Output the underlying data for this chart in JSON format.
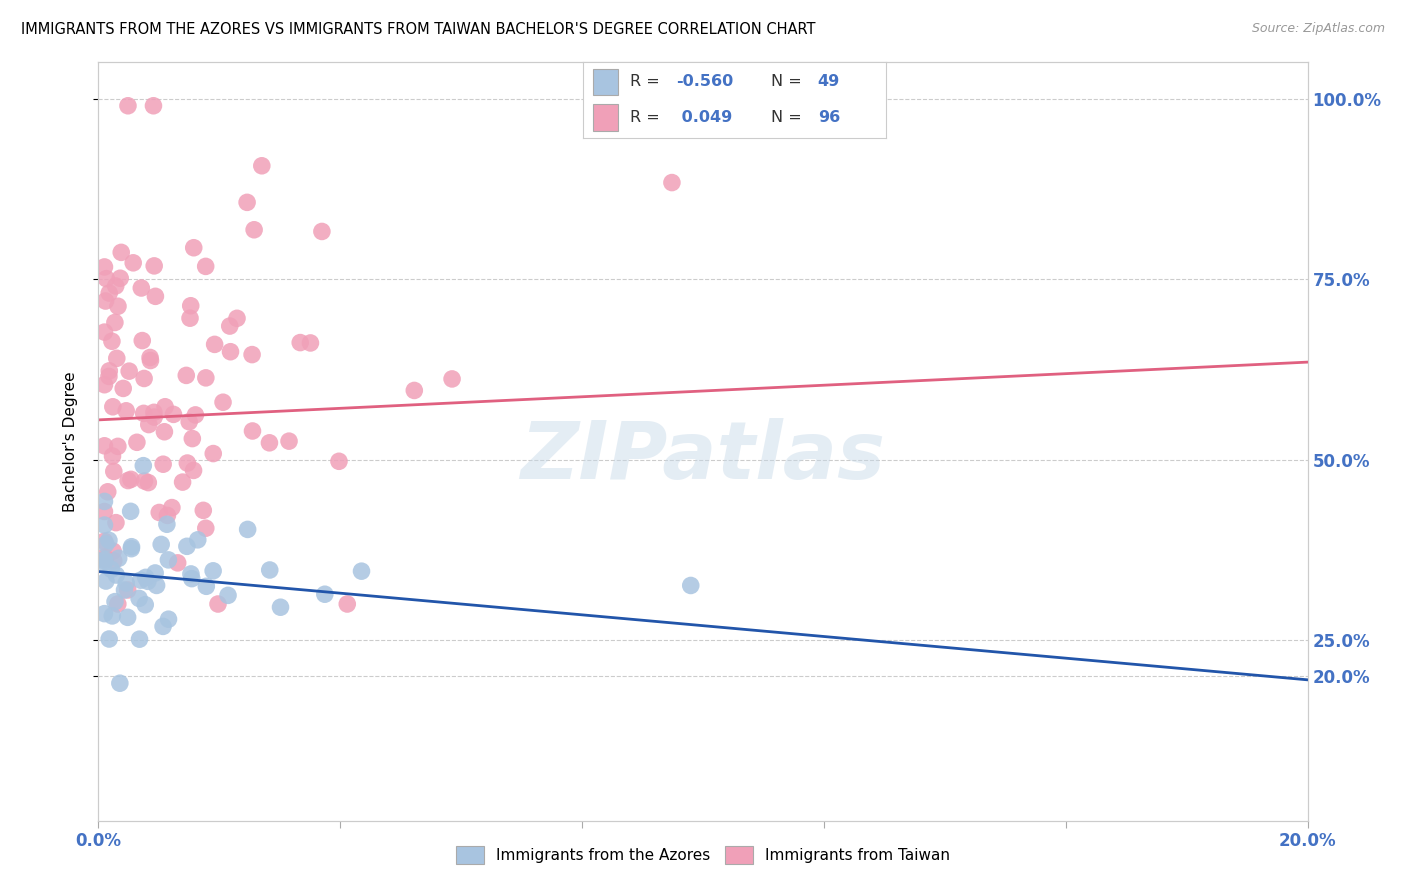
{
  "title": "IMMIGRANTS FROM THE AZORES VS IMMIGRANTS FROM TAIWAN BACHELOR'S DEGREE CORRELATION CHART",
  "source": "Source: ZipAtlas.com",
  "ylabel": "Bachelor's Degree",
  "azores_color": "#a8c4e0",
  "taiwan_color": "#f0a0b8",
  "azores_line_color": "#2255aa",
  "taiwan_line_color": "#e06080",
  "legend_r1": "R = -0.560",
  "legend_n1": "N = 49",
  "legend_r2": "R =  0.049",
  "legend_n2": "N = 96",
  "xlim": [
    0.0,
    0.2
  ],
  "ylim": [
    0.0,
    1.05
  ],
  "background_color": "#ffffff",
  "grid_color": "#cccccc",
  "axis_label_color": "#4472c4",
  "text_color": "#000000",
  "watermark": "ZIPatlas",
  "azores_line_x0": 0.0,
  "azores_line_y0": 0.345,
  "azores_line_x1": 0.2,
  "azores_line_y1": 0.195,
  "taiwan_line_x0": 0.0,
  "taiwan_line_y0": 0.555,
  "taiwan_line_x1": 0.2,
  "taiwan_line_y1": 0.635
}
